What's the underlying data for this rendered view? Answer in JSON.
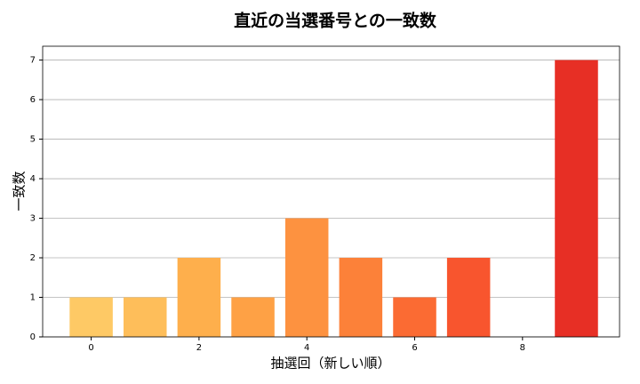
{
  "chart_data": {
    "type": "bar",
    "title": "直近の当選番号との一致数",
    "x_label": "抽選回（新しい順）",
    "y_label": "一致数",
    "x": [
      0,
      1,
      2,
      3,
      4,
      5,
      6,
      7,
      8,
      9
    ],
    "values": [
      1,
      1,
      2,
      1,
      3,
      2,
      1,
      2,
      0,
      7
    ],
    "colors": [
      "#fec965",
      "#febe5a",
      "#feaf4c",
      "#fea145",
      "#fd9240",
      "#fc8139",
      "#fb6b33",
      "#f8552e",
      "#ef3c27",
      "#e72f25"
    ],
    "xlim": [
      -0.9,
      9.8
    ],
    "xticks": [
      0,
      2,
      4,
      6,
      8
    ],
    "ylim": [
      0,
      7.35
    ],
    "yticks": [
      0,
      1,
      2,
      3,
      4,
      5,
      6,
      7
    ],
    "grid": true
  }
}
